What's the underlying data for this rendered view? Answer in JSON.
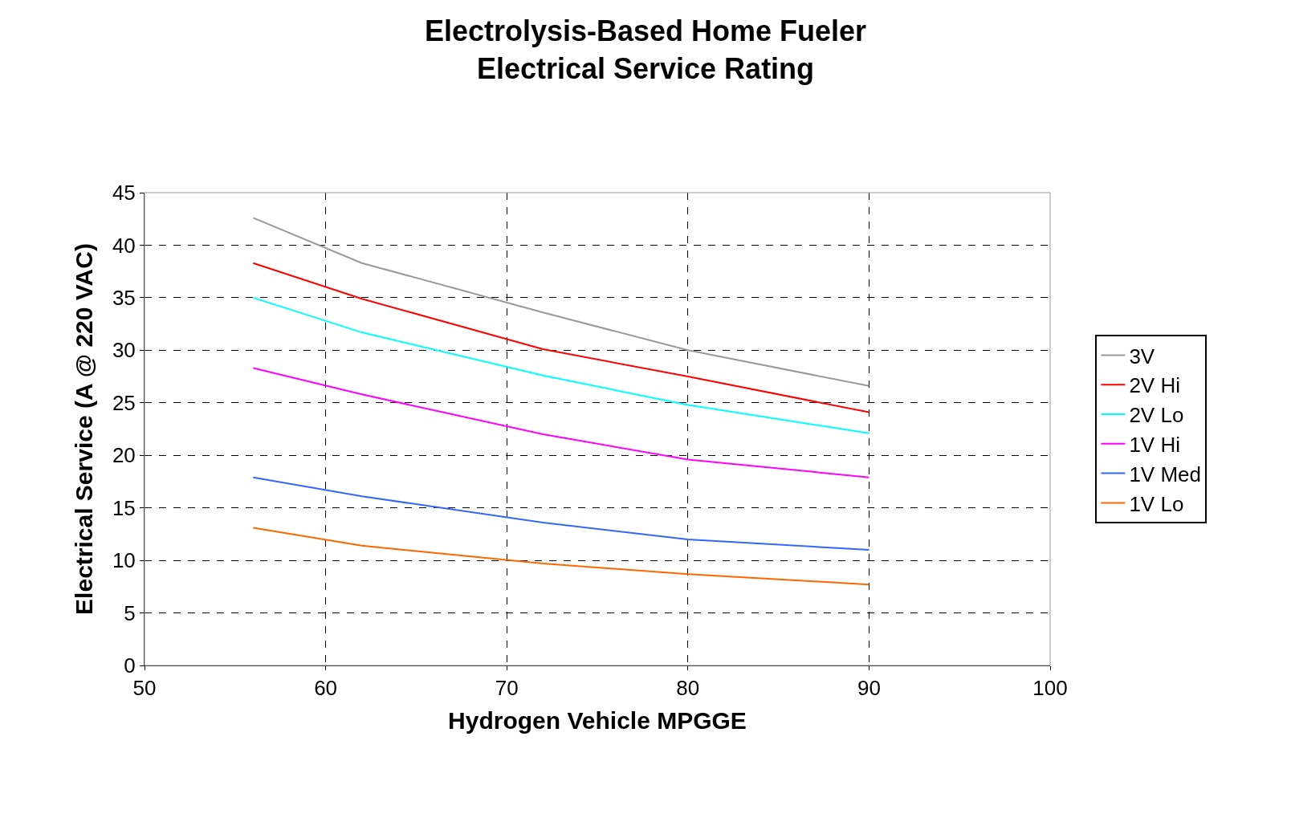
{
  "chart_data": {
    "type": "line",
    "title": "Electrolysis-Based Home Fueler\nElectrical Service Rating",
    "xlabel": "Hydrogen Vehicle MPGGE",
    "ylabel": "Electrical Service (A @ 220 VAC)",
    "x": [
      56,
      62,
      72,
      80,
      90
    ],
    "series": [
      {
        "name": "3V",
        "color": "#999999",
        "values": [
          42.6,
          38.3,
          33.6,
          30.0,
          26.6
        ]
      },
      {
        "name": "2V Hi",
        "color": "#ff0000",
        "values": [
          38.3,
          34.9,
          30.1,
          27.5,
          24.1
        ]
      },
      {
        "name": "2V Lo",
        "color": "#00ffff",
        "values": [
          35.0,
          31.7,
          27.6,
          24.8,
          22.1
        ]
      },
      {
        "name": "1V Hi",
        "color": "#ff00ff",
        "values": [
          28.3,
          25.8,
          22.0,
          19.6,
          17.9
        ]
      },
      {
        "name": "1V Med",
        "color": "#3366ff",
        "values": [
          17.9,
          16.1,
          13.6,
          12.0,
          11.0
        ]
      },
      {
        "name": "1V Lo",
        "color": "#ff6600",
        "values": [
          13.1,
          11.4,
          9.7,
          8.7,
          7.7
        ]
      }
    ],
    "xlim": [
      50,
      100
    ],
    "xticks": [
      50,
      60,
      70,
      80,
      90,
      100
    ],
    "ylim": [
      0,
      45
    ],
    "yticks": [
      0,
      5,
      10,
      15,
      20,
      25,
      30,
      35,
      40,
      45
    ],
    "grid": true,
    "legend": "right",
    "marker": "none",
    "line_style": "solid"
  }
}
